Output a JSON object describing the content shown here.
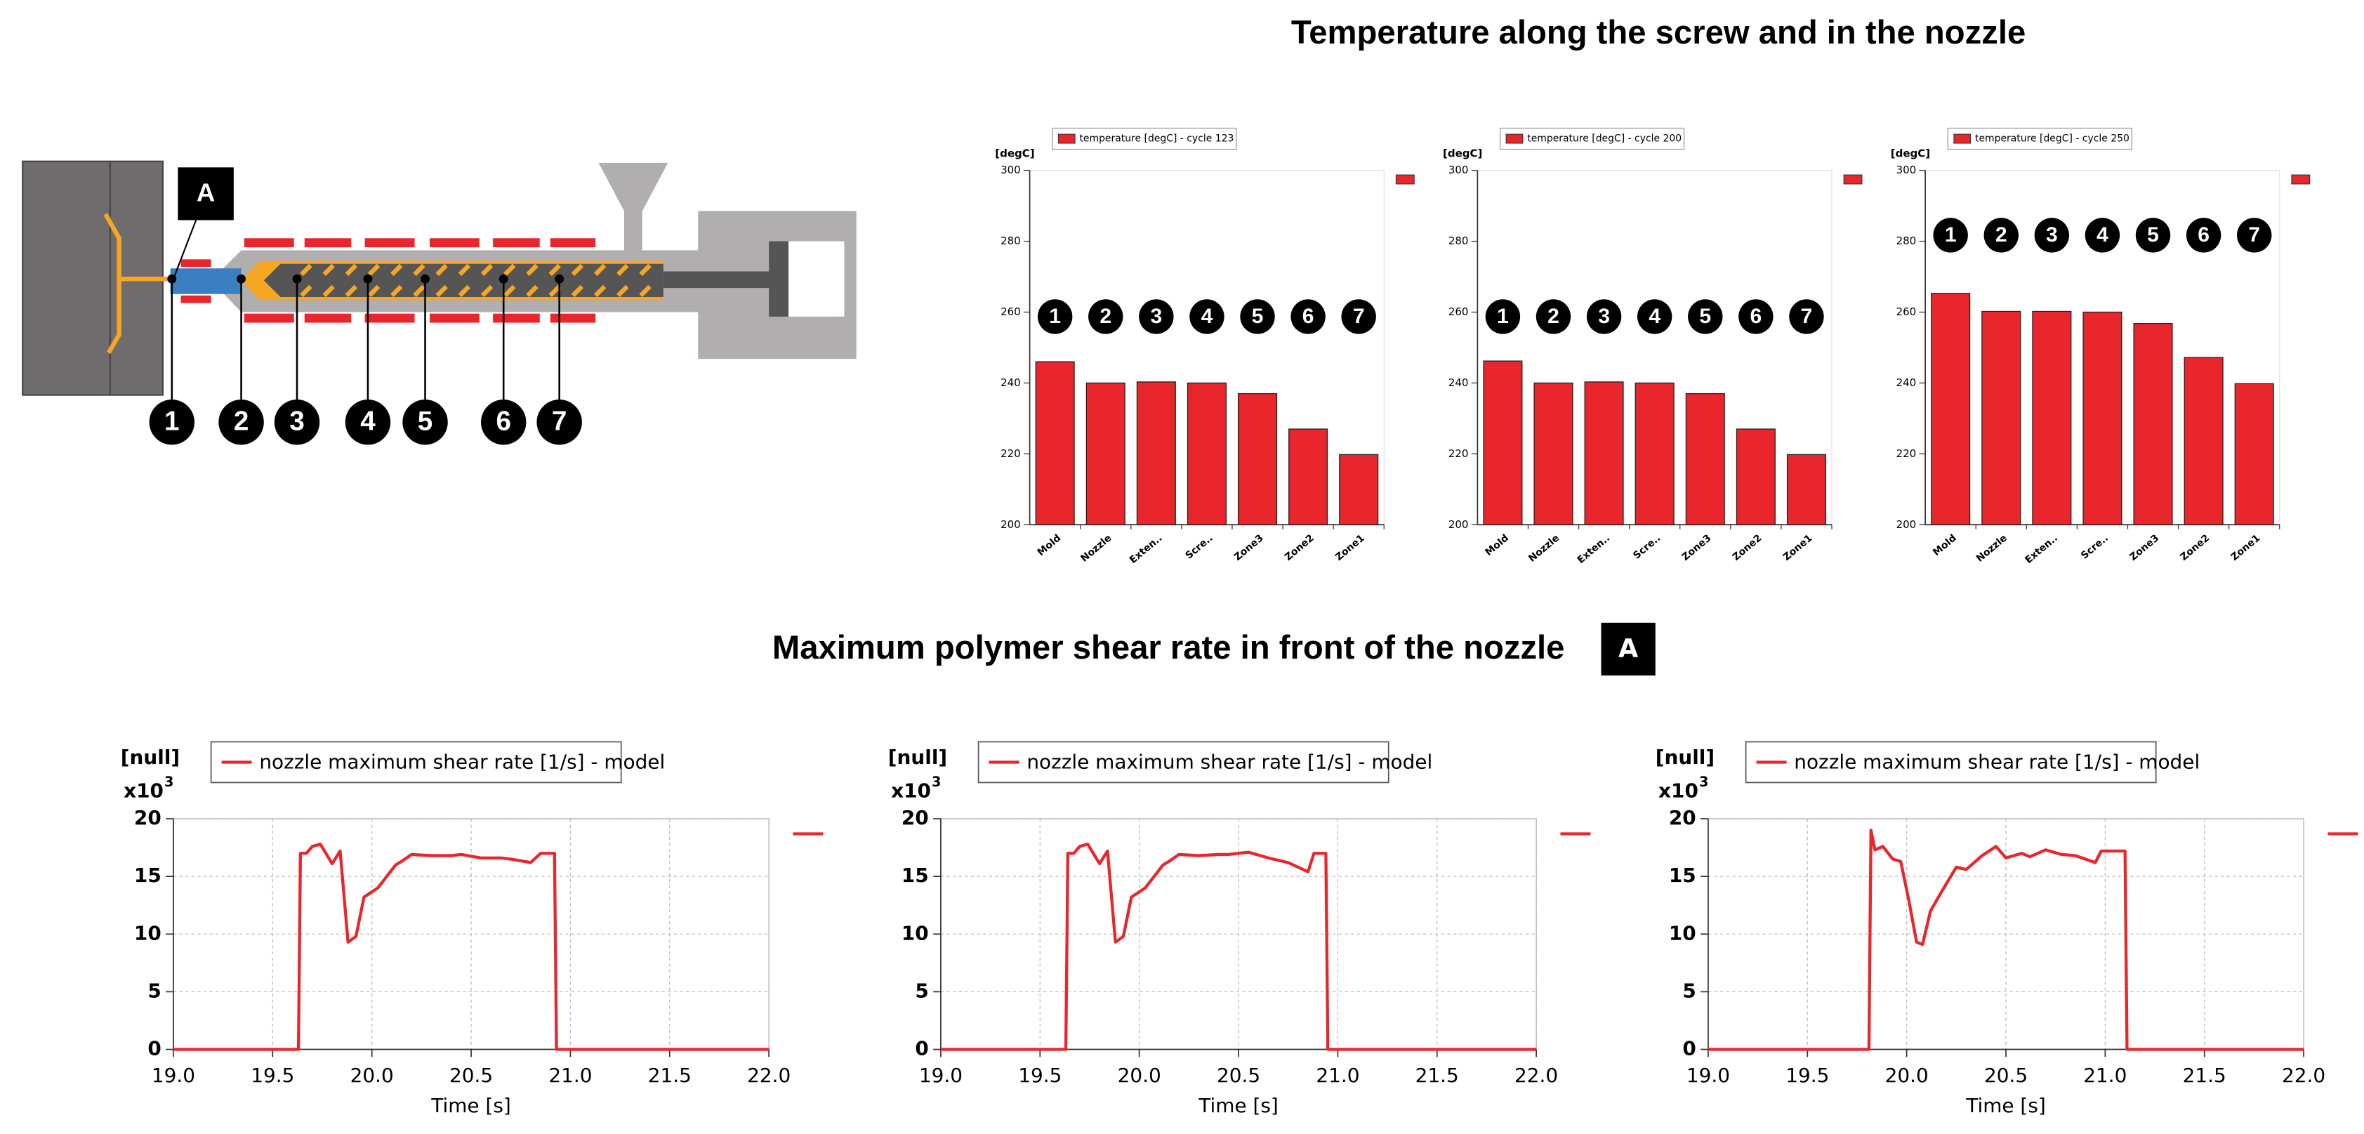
{
  "headings": {
    "top": "Temperature along the screw and in the nozzle",
    "bottom": "Maximum polymer shear rate in front of the nozzle",
    "badge": "A"
  },
  "diagram": {
    "label": "A",
    "markers": [
      "1",
      "2",
      "3",
      "4",
      "5",
      "6",
      "7"
    ]
  },
  "chart_data": [
    {
      "type": "bar",
      "y_unit": "[degC]",
      "categories": [
        "Mold",
        "Nozzle",
        "Exten..",
        "Scre..",
        "Zone3",
        "Zone2",
        "Zone1"
      ],
      "series": [
        {
          "name": "temperature [degC] - cycle 123",
          "color": "#e8262b",
          "values": [
            246,
            240,
            240.3,
            240,
            237,
            227,
            219.8
          ]
        }
      ],
      "markers": [
        "1",
        "2",
        "3",
        "4",
        "5",
        "6",
        "7"
      ],
      "ylim": [
        200,
        300
      ],
      "yticks": [
        200,
        220,
        240,
        260,
        280,
        300
      ]
    },
    {
      "type": "bar",
      "y_unit": "[degC]",
      "categories": [
        "Mold",
        "Nozzle",
        "Exten..",
        "Scre..",
        "Zone3",
        "Zone2",
        "Zone1"
      ],
      "series": [
        {
          "name": "temperature [degC] - cycle 200",
          "color": "#e8262b",
          "values": [
            246.2,
            240,
            240.3,
            240,
            237,
            227,
            219.8
          ]
        }
      ],
      "markers": [
        "1",
        "2",
        "3",
        "4",
        "5",
        "6",
        "7"
      ],
      "ylim": [
        200,
        300
      ],
      "yticks": [
        200,
        220,
        240,
        260,
        280,
        300
      ]
    },
    {
      "type": "bar",
      "y_unit": "[degC]",
      "categories": [
        "Mold",
        "Nozzle",
        "Exten..",
        "Scre..",
        "Zone3",
        "Zone2",
        "Zone1"
      ],
      "series": [
        {
          "name": "temperature [degC] - cycle 250",
          "color": "#e8262b",
          "values": [
            265.3,
            260.2,
            260.2,
            260,
            256.8,
            247.2,
            239.8
          ]
        }
      ],
      "markers": [
        "1",
        "2",
        "3",
        "4",
        "5",
        "6",
        "7"
      ],
      "ylim": [
        200,
        300
      ],
      "yticks": [
        200,
        220,
        240,
        260,
        280,
        300
      ]
    },
    {
      "type": "line",
      "y_unit": "[null]",
      "y_scale": "x10",
      "y_scale_exp": "3",
      "x_label": "Time [s]",
      "x": [
        19.0,
        19.63,
        19.64,
        19.67,
        19.7,
        19.74,
        19.8,
        19.84,
        19.88,
        19.92,
        19.96,
        20.03,
        20.12,
        20.15,
        20.2,
        20.3,
        20.4,
        20.45,
        20.55,
        20.65,
        20.7,
        20.8,
        20.85,
        20.92,
        20.93,
        22.0
      ],
      "series": [
        {
          "name": "nozzle maximum shear rate [1/s] - model",
          "color": "#e8262b",
          "values": [
            0,
            0,
            17,
            17,
            17.6,
            17.8,
            16.1,
            17.2,
            9.3,
            9.8,
            13.2,
            14,
            16,
            16.3,
            16.9,
            16.8,
            16.8,
            16.9,
            16.6,
            16.6,
            16.5,
            16.2,
            17,
            17,
            0,
            0
          ]
        }
      ],
      "xlim": [
        19,
        22
      ],
      "ylim": [
        0,
        20
      ],
      "xticks": [
        {
          "value": 19,
          "label": "19.0"
        },
        {
          "value": 19.5,
          "label": "19.5"
        },
        {
          "value": 20,
          "label": "20.0"
        },
        {
          "value": 20.5,
          "label": "20.5"
        },
        {
          "value": 21,
          "label": "21.0"
        },
        {
          "value": 21.5,
          "label": "21.5"
        },
        {
          "value": 22,
          "label": "22.0"
        }
      ],
      "yticks": [
        0,
        5,
        10,
        15,
        20
      ],
      "grid": true
    },
    {
      "type": "line",
      "y_unit": "[null]",
      "y_scale": "x10",
      "y_scale_exp": "3",
      "x_label": "Time [s]",
      "x": [
        19.0,
        19.63,
        19.64,
        19.67,
        19.7,
        19.74,
        19.8,
        19.84,
        19.88,
        19.92,
        19.96,
        20.03,
        20.12,
        20.15,
        20.2,
        20.3,
        20.4,
        20.45,
        20.55,
        20.65,
        20.75,
        20.85,
        20.88,
        20.94,
        20.95,
        22.0
      ],
      "series": [
        {
          "name": "nozzle maximum shear rate [1/s] - model",
          "color": "#e8262b",
          "values": [
            0,
            0,
            17,
            17,
            17.6,
            17.8,
            16.1,
            17.2,
            9.3,
            9.8,
            13.2,
            14,
            16,
            16.3,
            16.9,
            16.8,
            16.9,
            16.9,
            17.1,
            16.6,
            16.2,
            15.4,
            17,
            17,
            0,
            0
          ]
        }
      ],
      "xlim": [
        19,
        22
      ],
      "ylim": [
        0,
        20
      ],
      "xticks": [
        {
          "value": 19,
          "label": "19.0"
        },
        {
          "value": 19.5,
          "label": "19.5"
        },
        {
          "value": 20,
          "label": "20.0"
        },
        {
          "value": 20.5,
          "label": "20.5"
        },
        {
          "value": 21,
          "label": "21.0"
        },
        {
          "value": 21.5,
          "label": "21.5"
        },
        {
          "value": 22,
          "label": "22.0"
        }
      ],
      "yticks": [
        0,
        5,
        10,
        15,
        20
      ],
      "grid": true
    },
    {
      "type": "line",
      "y_unit": "[null]",
      "y_scale": "x10",
      "y_scale_exp": "3",
      "x_label": "Time [s]",
      "x": [
        19.0,
        19.81,
        19.82,
        19.84,
        19.88,
        19.93,
        19.97,
        20.01,
        20.05,
        20.08,
        20.12,
        20.17,
        20.25,
        20.3,
        20.38,
        20.45,
        20.5,
        20.58,
        20.62,
        20.7,
        20.78,
        20.85,
        20.95,
        20.98,
        21.1,
        21.11,
        22.0
      ],
      "series": [
        {
          "name": "nozzle maximum shear rate [1/s] - model",
          "color": "#e8262b",
          "values": [
            0,
            0,
            19,
            17.3,
            17.6,
            16.5,
            16.3,
            13,
            9.3,
            9.1,
            12,
            13.5,
            15.8,
            15.6,
            16.8,
            17.6,
            16.6,
            17,
            16.7,
            17.3,
            16.9,
            16.8,
            16.2,
            17.2,
            17.2,
            0,
            0
          ]
        }
      ],
      "xlim": [
        19,
        22
      ],
      "ylim": [
        0,
        20
      ],
      "xticks": [
        {
          "value": 19,
          "label": "19.0"
        },
        {
          "value": 19.5,
          "label": "19.5"
        },
        {
          "value": 20,
          "label": "20.0"
        },
        {
          "value": 20.5,
          "label": "20.5"
        },
        {
          "value": 21,
          "label": "21.0"
        },
        {
          "value": 21.5,
          "label": "21.5"
        },
        {
          "value": 22,
          "label": "22.0"
        }
      ],
      "yticks": [
        0,
        5,
        10,
        15,
        20
      ],
      "grid": true
    }
  ]
}
